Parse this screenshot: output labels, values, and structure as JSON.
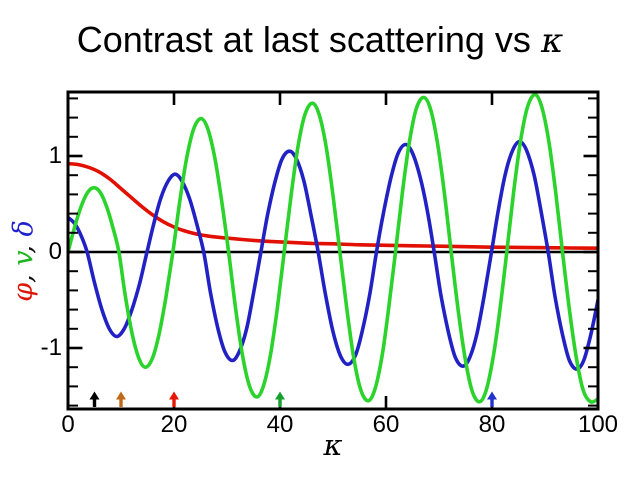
{
  "header": {
    "title_prefix": "Contrast at last scattering vs ",
    "title_symbol": "κ"
  },
  "y_axis_label_parts": [
    {
      "text": "φ",
      "color": "#dd1507"
    },
    {
      "text": ", ",
      "color": "#111111"
    },
    {
      "text": "v",
      "color": "#1db31d"
    },
    {
      "text": ", ",
      "color": "#111111"
    },
    {
      "text": "δ",
      "color": "#2222cc"
    }
  ],
  "chart_data": {
    "type": "line",
    "title": "Contrast at last scattering vs κ",
    "xlabel": "κ",
    "ylabel": "φ, v, δ",
    "xlim": [
      0,
      100
    ],
    "ylim": [
      -1.63,
      1.67
    ],
    "grid": false,
    "legend_position": "none (series identified by colored symbols φ red, v green, δ blue in y-axis label)",
    "x_major_ticks": [
      0,
      20,
      40,
      60,
      80,
      100
    ],
    "y_major_ticks": [
      1,
      0,
      -1
    ],
    "y_minor_tick_step": 0.2,
    "zero_line": true,
    "frame_color": "#000000",
    "series": [
      {
        "key": "phi",
        "name": "φ",
        "color": "#e11000",
        "role": "decaying potential curve",
        "points": [
          [
            0,
            0.92
          ],
          [
            2,
            0.91
          ],
          [
            4,
            0.88
          ],
          [
            6,
            0.83
          ],
          [
            8,
            0.755
          ],
          [
            10,
            0.66
          ],
          [
            12,
            0.565
          ],
          [
            14,
            0.47
          ],
          [
            16,
            0.385
          ],
          [
            18,
            0.315
          ],
          [
            20,
            0.26
          ],
          [
            22,
            0.22
          ],
          [
            24,
            0.19
          ],
          [
            26,
            0.17
          ],
          [
            28,
            0.155
          ],
          [
            30,
            0.145
          ],
          [
            34,
            0.125
          ],
          [
            38,
            0.11
          ],
          [
            42,
            0.1
          ],
          [
            46,
            0.09
          ],
          [
            50,
            0.085
          ],
          [
            55,
            0.075
          ],
          [
            60,
            0.07
          ],
          [
            65,
            0.065
          ],
          [
            70,
            0.06
          ],
          [
            75,
            0.055
          ],
          [
            80,
            0.05
          ],
          [
            85,
            0.048
          ],
          [
            90,
            0.045
          ],
          [
            95,
            0.042
          ],
          [
            100,
            0.04
          ]
        ]
      },
      {
        "key": "delta",
        "name": "δ",
        "color": "#2222c4",
        "role": "blue oscillating curve",
        "points": [
          [
            0,
            0.36
          ],
          [
            1.2,
            0.3
          ],
          [
            2.4,
            0.18
          ],
          [
            3.6,
            0
          ],
          [
            5,
            -0.32
          ],
          [
            6.4,
            -0.6
          ],
          [
            7.8,
            -0.8
          ],
          [
            9.2,
            -0.88
          ],
          [
            10.6,
            -0.8
          ],
          [
            12,
            -0.61
          ],
          [
            13.5,
            -0.33
          ],
          [
            14.9,
            0
          ],
          [
            16.2,
            0.3
          ],
          [
            17.5,
            0.56
          ],
          [
            18.9,
            0.74
          ],
          [
            20.2,
            0.81
          ],
          [
            21.5,
            0.74
          ],
          [
            22.9,
            0.56
          ],
          [
            24.2,
            0.31
          ],
          [
            25.6,
            0
          ],
          [
            26.9,
            -0.43
          ],
          [
            28.3,
            -0.8
          ],
          [
            29.6,
            -1.04
          ],
          [
            31,
            -1.13
          ],
          [
            32.3,
            -1.04
          ],
          [
            33.7,
            -0.8
          ],
          [
            35,
            -0.43
          ],
          [
            36.4,
            0
          ],
          [
            37.7,
            0.4
          ],
          [
            39.1,
            0.74
          ],
          [
            40.4,
            0.97
          ],
          [
            41.8,
            1.05
          ],
          [
            43.1,
            0.97
          ],
          [
            44.5,
            0.74
          ],
          [
            45.8,
            0.4
          ],
          [
            47.2,
            0
          ],
          [
            48.6,
            -0.45
          ],
          [
            50,
            -0.83
          ],
          [
            51.4,
            -1.08
          ],
          [
            52.8,
            -1.17
          ],
          [
            54.2,
            -1.08
          ],
          [
            55.5,
            -0.83
          ],
          [
            56.9,
            -0.45
          ],
          [
            58.2,
            0
          ],
          [
            59.6,
            0.43
          ],
          [
            61,
            0.79
          ],
          [
            62.3,
            1.03
          ],
          [
            63.7,
            1.12
          ],
          [
            65,
            1.03
          ],
          [
            66.4,
            0.79
          ],
          [
            67.8,
            0.43
          ],
          [
            69.1,
            0
          ],
          [
            70.4,
            -0.46
          ],
          [
            71.8,
            -0.84
          ],
          [
            73.1,
            -1.1
          ],
          [
            74.5,
            -1.19
          ],
          [
            75.8,
            -1.1
          ],
          [
            77.2,
            -0.84
          ],
          [
            78.5,
            -0.46
          ],
          [
            79.9,
            0
          ],
          [
            81.2,
            0.44
          ],
          [
            82.5,
            0.81
          ],
          [
            83.9,
            1.06
          ],
          [
            85.2,
            1.15
          ],
          [
            86.5,
            1.06
          ],
          [
            87.9,
            0.81
          ],
          [
            89.2,
            0.44
          ],
          [
            90.6,
            0
          ],
          [
            91.9,
            -0.47
          ],
          [
            93.3,
            -0.86
          ],
          [
            94.6,
            -1.13
          ],
          [
            96,
            -1.22
          ],
          [
            97.3,
            -1.13
          ],
          [
            98.6,
            -0.87
          ],
          [
            100,
            -0.5
          ]
        ]
      },
      {
        "key": "v",
        "name": "v",
        "color": "#2cd32c",
        "role": "green oscillating curve",
        "points": [
          [
            0,
            0
          ],
          [
            1.2,
            0.25
          ],
          [
            2.45,
            0.47
          ],
          [
            3.7,
            0.62
          ],
          [
            4.9,
            0.67
          ],
          [
            6.1,
            0.62
          ],
          [
            7.3,
            0.47
          ],
          [
            8.5,
            0.25
          ],
          [
            9.6,
            0
          ],
          [
            10.8,
            -0.45
          ],
          [
            12.1,
            -0.85
          ],
          [
            13.4,
            -1.11
          ],
          [
            14.6,
            -1.2
          ],
          [
            15.9,
            -1.11
          ],
          [
            17.2,
            -0.85
          ],
          [
            18.5,
            -0.46
          ],
          [
            19.8,
            0
          ],
          [
            21.1,
            0.53
          ],
          [
            22.4,
            0.98
          ],
          [
            23.7,
            1.28
          ],
          [
            25.1,
            1.39
          ],
          [
            26.4,
            1.28
          ],
          [
            27.7,
            0.98
          ],
          [
            29,
            0.53
          ],
          [
            30.3,
            0
          ],
          [
            31.6,
            -0.58
          ],
          [
            32.9,
            -1.07
          ],
          [
            34.2,
            -1.39
          ],
          [
            35.6,
            -1.51
          ],
          [
            36.9,
            -1.39
          ],
          [
            38.2,
            -1.07
          ],
          [
            39.5,
            -0.58
          ],
          [
            40.8,
            0
          ],
          [
            42.1,
            0.59
          ],
          [
            43.4,
            1.1
          ],
          [
            44.7,
            1.43
          ],
          [
            46.1,
            1.55
          ],
          [
            47.4,
            1.43
          ],
          [
            48.7,
            1.1
          ],
          [
            50,
            0.59
          ],
          [
            51.3,
            0
          ],
          [
            52.6,
            -0.59
          ],
          [
            53.9,
            -1.1
          ],
          [
            55.2,
            -1.43
          ],
          [
            56.6,
            -1.55
          ],
          [
            57.9,
            -1.43
          ],
          [
            59.2,
            -1.1
          ],
          [
            60.5,
            -0.59
          ],
          [
            61.8,
            0
          ],
          [
            63.1,
            0.62
          ],
          [
            64.4,
            1.14
          ],
          [
            65.7,
            1.49
          ],
          [
            67.1,
            1.61
          ],
          [
            68.4,
            1.49
          ],
          [
            69.7,
            1.14
          ],
          [
            71,
            0.62
          ],
          [
            72.3,
            0
          ],
          [
            73.6,
            -0.6
          ],
          [
            74.9,
            -1.1
          ],
          [
            76.2,
            -1.44
          ],
          [
            77.6,
            -1.56
          ],
          [
            78.9,
            -1.44
          ],
          [
            80.2,
            -1.1
          ],
          [
            81.5,
            -0.6
          ],
          [
            82.8,
            0
          ],
          [
            84.1,
            0.63
          ],
          [
            85.4,
            1.16
          ],
          [
            86.7,
            1.51
          ],
          [
            88.1,
            1.64
          ],
          [
            89.4,
            1.51
          ],
          [
            90.7,
            1.16
          ],
          [
            92,
            0.63
          ],
          [
            93.3,
            0
          ],
          [
            94.6,
            -0.6
          ],
          [
            95.9,
            -1.1
          ],
          [
            97.2,
            -1.44
          ],
          [
            98.6,
            -1.56
          ],
          [
            100,
            -1.53
          ]
        ]
      }
    ],
    "arrows": [
      {
        "kappa": 5,
        "color": "#000000"
      },
      {
        "kappa": 10,
        "color": "#c06a18"
      },
      {
        "kappa": 20,
        "color": "#e81505"
      },
      {
        "kappa": 40,
        "color": "#18a02c"
      },
      {
        "kappa": 80,
        "color": "#2233cc"
      }
    ]
  }
}
